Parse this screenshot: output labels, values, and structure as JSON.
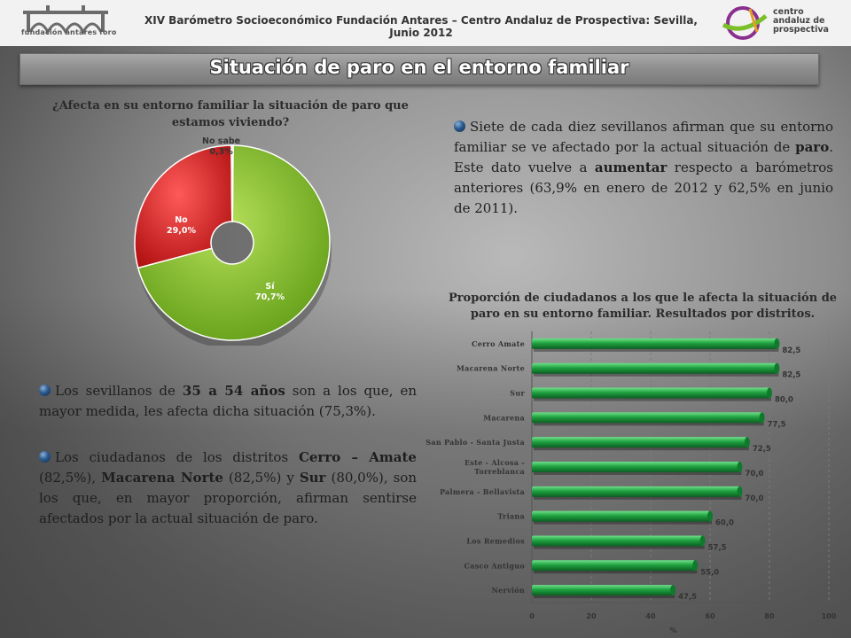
{
  "header": {
    "title": "XIV Barómetro Socioeconómico Fundación Antares – Centro Andaluz de Prospectiva: Sevilla, Junio 2012",
    "logo_left_text": "fundación antares foro",
    "logo_right_lines": [
      "centro",
      "andaluz de",
      "prospectiva"
    ]
  },
  "banner": {
    "title": "Situación de paro en el entorno familiar"
  },
  "pie": {
    "question_line1": "¿Afecta en su entorno familiar la situación de paro que",
    "question_line2": "estamos viviendo?",
    "labels": {
      "no_sabe_name": "No sabe",
      "no_sabe_value": "0,3%",
      "no_name": "No",
      "no_value": "29,0%",
      "si_name": "Sí",
      "si_value": "70,7%"
    }
  },
  "text": {
    "para1_a": "Siete de cada diez sevillanos afirman que su entorno familiar se ve afectado por la actual situación de ",
    "para1_b": "paro",
    "para1_c": ". Este dato vuelve a ",
    "para1_d": "aumentar",
    "para1_e": " respecto a barómetros anteriores (63,9% en enero de 2012 y 62,5% en junio de 2011).",
    "para2_a": "Los sevillanos de ",
    "para2_b": "35 a 54 años",
    "para2_c": " son a los que, en mayor medida, les afecta dicha situación (75,3%).",
    "para3_a": "Los ciudadanos de los distritos ",
    "para3_b": "Cerro – Amate",
    "para3_c": " (82,5%), ",
    "para3_d": "Macarena Norte",
    "para3_e": " (82,5%) y ",
    "para3_f": "Sur",
    "para3_g": " (80,0%), son los que, en mayor proporción, afirman sentirse afectados por la actual situación de paro."
  },
  "bar_chart": {
    "title_line1": "Proporción de ciudadanos a los que le afecta la situación de",
    "title_line2": "paro en su entorno familiar. Resultados por distritos."
  },
  "colors": {
    "green": "#7fbf1f",
    "red": "#d81f1f",
    "bar_green": "#1f9a3a",
    "bullet": "#2b5a8e"
  },
  "chart_data": [
    {
      "type": "pie",
      "categories": [
        "Sí",
        "No",
        "No sabe"
      ],
      "values": [
        70.7,
        29.0,
        0.3
      ],
      "colors": [
        "#8cc63f",
        "#e02020",
        "#dcdcdc"
      ]
    },
    {
      "type": "bar",
      "orientation": "horizontal",
      "categories": [
        "Cerro Amate",
        "Macarena Norte",
        "Sur",
        "Macarena",
        "San Pablo - Santa Justa",
        "Este - Alcosa - Torreblanca",
        "Palmera - Bellavista",
        "Triana",
        "Los Remedios",
        "Casco Antiguo",
        "Nervión"
      ],
      "category_lines": [
        [
          "Cerro Amate"
        ],
        [
          "Macarena Norte"
        ],
        [
          "Sur"
        ],
        [
          "Macarena"
        ],
        [
          "San Pablo - Santa Justa"
        ],
        [
          "Este - Alcosa -",
          "Torreblanca"
        ],
        [
          "Palmera - Bellavista"
        ],
        [
          "Triana"
        ],
        [
          "Los Remedios"
        ],
        [
          "Casco Antiguo"
        ],
        [
          "Nervión"
        ]
      ],
      "values": [
        82.5,
        82.5,
        80.0,
        77.5,
        72.5,
        70.0,
        70.0,
        60.0,
        57.5,
        55.0,
        47.5
      ],
      "value_labels": [
        "82,5",
        "82,5",
        "80,0",
        "77,5",
        "72,5",
        "70,0",
        "70,0",
        "60,0",
        "57,5",
        "55,0",
        "47,5"
      ],
      "xlabel": "%",
      "xlim": [
        0,
        100
      ],
      "xticks": [
        0,
        20,
        40,
        60,
        80,
        100
      ]
    }
  ]
}
